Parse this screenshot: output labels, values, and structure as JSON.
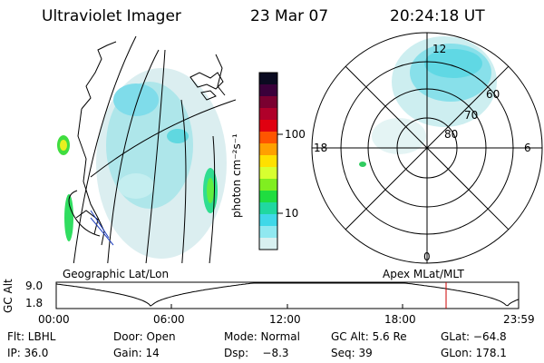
{
  "header": {
    "instrument": "Ultraviolet Imager",
    "date": "23 Mar 07",
    "time": "20:24:18 UT"
  },
  "colorbar": {
    "unit_label": "photon cm⁻²s⁻¹",
    "ticks": [
      "100",
      "10"
    ],
    "colors": [
      "#0a0a20",
      "#3a003a",
      "#7a0030",
      "#b0002a",
      "#e00010",
      "#ff5500",
      "#ffa000",
      "#ffe000",
      "#d8ff30",
      "#80ee20",
      "#20dd40",
      "#20d8a0",
      "#40d8e8",
      "#90e8f0",
      "#d8f0f0"
    ]
  },
  "geo_map": {
    "label": "Geographic Lat/Lon"
  },
  "polar_map": {
    "label": "Apex MLat/MLT",
    "mlt_labels": {
      "top": "12",
      "left": "18",
      "right": "6",
      "bottom": "0"
    },
    "lat_labels": [
      "60",
      "70",
      "80"
    ]
  },
  "timeline": {
    "ylabel": "GC Alt",
    "ytick_top": "9.0",
    "ytick_bottom": "1.8",
    "xticks": [
      "00:00",
      "06:00",
      "12:00",
      "18:00",
      "23:59"
    ],
    "marker_color": "#cc0000"
  },
  "info": {
    "row1": {
      "flt": "Flt: LBHL",
      "door": "Door: Open",
      "mode": "Mode: Normal",
      "gcalt": "GC Alt: 5.6 Re",
      "glat": "GLat: −64.8"
    },
    "row2": {
      "ip": "IP: 36.0",
      "gain": "Gain: 14",
      "dsp": "Dsp:    −8.3",
      "seq": "Seq: 39",
      "glon": "GLon: 178.1"
    }
  }
}
